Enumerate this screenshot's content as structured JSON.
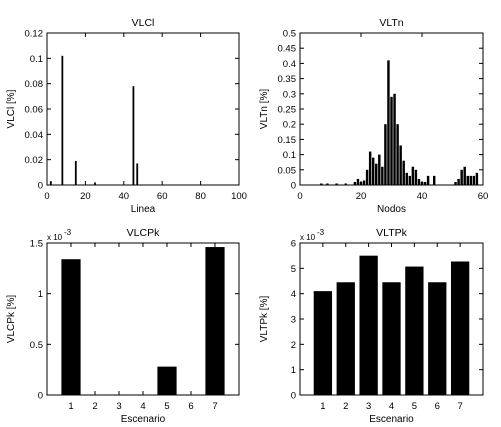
{
  "chart_data": [
    {
      "type": "bar",
      "title": "VLCl",
      "xlabel": "Linea",
      "ylabel": "VLCl [%]",
      "xlim": [
        0,
        100
      ],
      "ylim": [
        0,
        0.12
      ],
      "xticks": [
        0,
        20,
        40,
        60,
        80,
        100
      ],
      "xtick_labels": [
        "0",
        "20",
        "40",
        "60",
        "80",
        "100"
      ],
      "yticks": [
        0,
        0.02,
        0.04,
        0.06,
        0.08,
        0.1,
        0.12
      ],
      "ytick_labels": [
        "0",
        "0.02",
        "0.04",
        "0.06",
        "0.08",
        "0.1",
        "0.12"
      ],
      "x": [
        2,
        8,
        15,
        25,
        45,
        47
      ],
      "values": [
        0.003,
        0.102,
        0.019,
        0.002,
        0.078,
        0.017
      ]
    },
    {
      "type": "bar",
      "title": "VLTn",
      "xlabel": "Nodos",
      "ylabel": "VLTn [%]",
      "xlim": [
        0,
        60
      ],
      "ylim": [
        0,
        0.5
      ],
      "xticks": [
        0,
        20,
        40,
        60
      ],
      "xtick_labels": [
        "0",
        "20",
        "40",
        "60"
      ],
      "yticks": [
        0,
        0.05,
        0.1,
        0.15,
        0.2,
        0.25,
        0.3,
        0.35,
        0.4,
        0.45,
        0.5
      ],
      "ytick_labels": [
        "0",
        "0.05",
        "0.1",
        "0.15",
        "0.2",
        "0.25",
        "0.3",
        "0.35",
        "0.4",
        "0.45",
        "0.5"
      ],
      "x": [
        7,
        9,
        12,
        15,
        18,
        19,
        20,
        21,
        22,
        23,
        24,
        25,
        26,
        27,
        28,
        29,
        30,
        31,
        32,
        33,
        34,
        35,
        36,
        37,
        38,
        39,
        40,
        41,
        42,
        44,
        51,
        52,
        53,
        54,
        55,
        56,
        57,
        58
      ],
      "values": [
        0.005,
        0.005,
        0.005,
        0.005,
        0.01,
        0.02,
        0.01,
        0.015,
        0.05,
        0.11,
        0.09,
        0.07,
        0.1,
        0.06,
        0.2,
        0.41,
        0.29,
        0.3,
        0.2,
        0.13,
        0.08,
        0.04,
        0.03,
        0.06,
        0.05,
        0.02,
        0.01,
        0.01,
        0.03,
        0.03,
        0.01,
        0.02,
        0.05,
        0.06,
        0.03,
        0.03,
        0.03,
        0.04
      ]
    },
    {
      "type": "bar",
      "title": "VLCPk",
      "xlabel": "Escenario",
      "ylabel": "VLCPk [%]",
      "exponent_label": "x 10",
      "exponent_power": "-3",
      "categories": [
        "1",
        "2",
        "3",
        "4",
        "5",
        "6",
        "7"
      ],
      "values": [
        1.34,
        0,
        0.005,
        0,
        0.28,
        0,
        1.46
      ],
      "ylim": [
        0,
        1.5
      ],
      "yticks": [
        0,
        0.5,
        1,
        1.5
      ],
      "ytick_labels": [
        "0",
        "0.5",
        "1",
        "1.5"
      ]
    },
    {
      "type": "bar",
      "title": "VLTPk",
      "xlabel": "Escenario",
      "ylabel": "VLTPk [%]",
      "exponent_label": "x 10",
      "exponent_power": "-3",
      "categories": [
        "1",
        "2",
        "3",
        "4",
        "5",
        "6",
        "7"
      ],
      "values": [
        4.1,
        4.45,
        5.5,
        4.45,
        5.07,
        4.45,
        5.27
      ],
      "ylim": [
        0,
        6
      ],
      "yticks": [
        0,
        1,
        2,
        3,
        4,
        5,
        6
      ],
      "ytick_labels": [
        "0",
        "1",
        "2",
        "3",
        "4",
        "5",
        "6"
      ]
    }
  ]
}
